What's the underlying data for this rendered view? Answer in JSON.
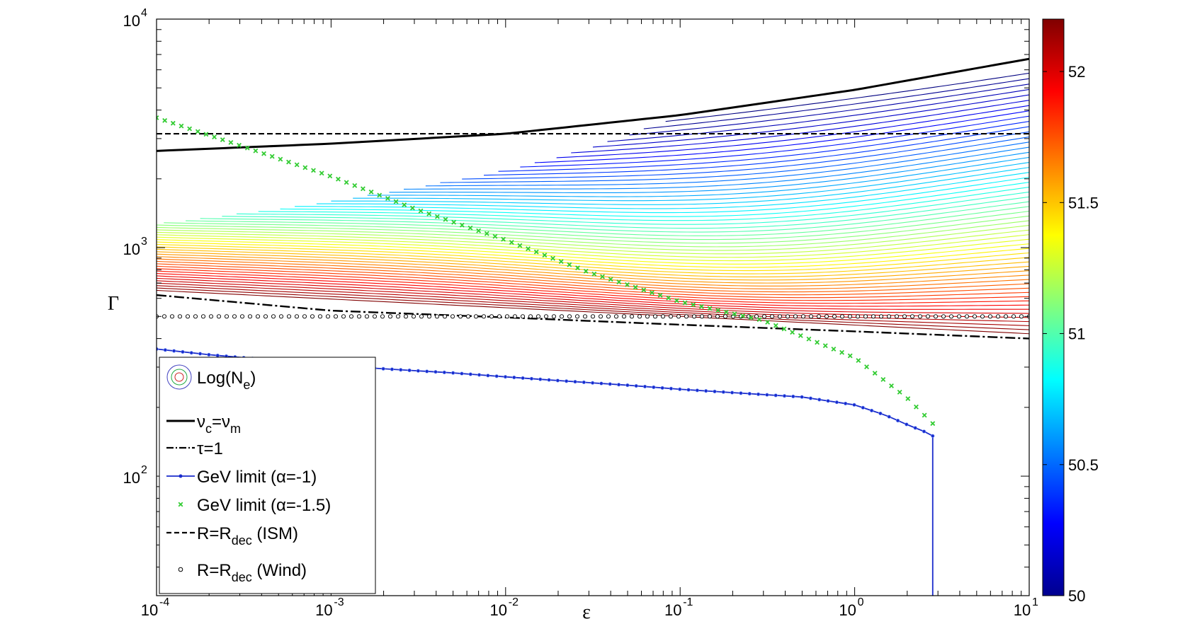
{
  "chart_data": {
    "type": "line",
    "title": "",
    "xlabel": "ε",
    "ylabel": "Γ",
    "xscale": "log",
    "yscale": "log",
    "xlim": [
      0.0001,
      10
    ],
    "ylim": [
      30,
      10000
    ],
    "x_ticks": [
      {
        "base": "10",
        "exp": "-4",
        "value": 0.0001
      },
      {
        "base": "10",
        "exp": "-3",
        "value": 0.001
      },
      {
        "base": "10",
        "exp": "-2",
        "value": 0.01
      },
      {
        "base": "10",
        "exp": "-1",
        "value": 0.1
      },
      {
        "base": "10",
        "exp": "0",
        "value": 1
      },
      {
        "base": "10",
        "exp": "1",
        "value": 10
      }
    ],
    "y_ticks": [
      {
        "base": "10",
        "exp": "2",
        "value": 100
      },
      {
        "base": "10",
        "exp": "3",
        "value": 1000
      },
      {
        "base": "10",
        "exp": "4",
        "value": 10000
      }
    ],
    "series": [
      {
        "id": "nu_c_nu_m",
        "style": "solid-black",
        "x": [
          0.0001,
          0.001,
          0.01,
          0.1,
          1,
          10
        ],
        "y": [
          2650,
          2850,
          3150,
          3800,
          4900,
          6700
        ]
      },
      {
        "id": "tau1",
        "style": "dashdot-black",
        "x": [
          0.0001,
          0.001,
          0.01,
          0.1,
          1,
          10
        ],
        "y": [
          620,
          530,
          495,
          460,
          430,
          400
        ]
      },
      {
        "id": "gev_alpha_1",
        "style": "blue-dots",
        "x": [
          0.0001,
          0.0002,
          0.0005,
          0.001,
          0.002,
          0.005,
          0.01,
          0.02,
          0.05,
          0.1,
          0.2,
          0.5,
          1,
          1.5,
          2,
          2.6,
          2.8,
          2.8
        ],
        "y": [
          360,
          340,
          320,
          305,
          295,
          283,
          272,
          262,
          250,
          240,
          232,
          222,
          205,
          185,
          168,
          155,
          150,
          30
        ]
      },
      {
        "id": "gev_alpha_1_5",
        "style": "green-x",
        "x": [
          0.0001,
          0.0003,
          0.001,
          0.003,
          0.01,
          0.03,
          0.1,
          0.3,
          1,
          2,
          2.8
        ],
        "y": [
          3700,
          2800,
          2050,
          1480,
          1080,
          780,
          580,
          480,
          330,
          220,
          170
        ]
      },
      {
        "id": "r_dec_ism",
        "style": "dashed-black",
        "x": [
          0.0001,
          10
        ],
        "y": [
          3150,
          3150
        ]
      },
      {
        "id": "r_dec_wind",
        "style": "black-circles",
        "x": [
          0.0001,
          10
        ],
        "y": [
          500,
          500
        ]
      }
    ],
    "legend": {
      "position": "bottom-left",
      "entries": [
        {
          "id": "contours",
          "text": "Log(N",
          "sub": "e",
          "tail": ")"
        },
        {
          "id": "nu_c_nu_m",
          "text": "ν",
          "sub": "c",
          "mid": "=ν",
          "sub2": "m"
        },
        {
          "id": "tau1",
          "text": "τ=1"
        },
        {
          "id": "gev_alpha_1",
          "text": "GeV limit (α=-1)"
        },
        {
          "id": "gev_alpha_1_5",
          "text": "GeV limit (α=-1.5)"
        },
        {
          "id": "r_dec_ism",
          "text": "R=R",
          "sub": "dec",
          "tail": " (ISM)"
        },
        {
          "id": "r_dec_wind",
          "text": "R=R",
          "sub": "dec",
          "tail": " (Wind)"
        }
      ]
    },
    "colorbar": {
      "range": [
        50,
        52.2
      ],
      "colormap": "jet",
      "ticks": [
        {
          "value": 50,
          "label": "50"
        },
        {
          "value": 50.5,
          "label": "50.5"
        },
        {
          "value": 51,
          "label": "51"
        },
        {
          "value": 51.5,
          "label": "51.5"
        },
        {
          "value": 52,
          "label": "52"
        }
      ]
    },
    "contours": {
      "variable": "Log(N_e)",
      "count": 56,
      "level_range": [
        50,
        52.2
      ],
      "gamma_top_at_low_eps": 2500,
      "gamma_top_at_high_eps": 5800,
      "gamma_bottom_at_low_eps": 650,
      "gamma_bottom_at_high_eps": 420,
      "dip_eps": 0.3
    }
  }
}
